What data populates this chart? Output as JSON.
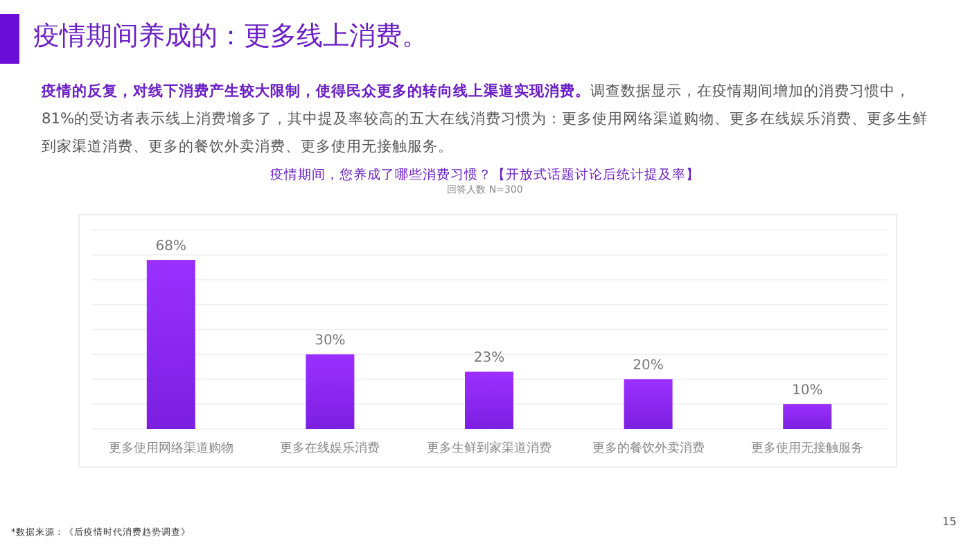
{
  "chart_data": {
    "type": "bar",
    "title": "疫情期间，您养成了哪些消费习惯？【开放式话题讨论后统计提及率】",
    "subtitle": "回答人数 N=300",
    "categories": [
      "更多使用网络渠道购物",
      "更多在线娱乐消费",
      "更多生鲜到家渠道消费",
      "更多的餐饮外卖消费",
      "更多使用无接触服务"
    ],
    "values": [
      68,
      30,
      23,
      20,
      10
    ],
    "value_labels": [
      "68%",
      "30%",
      "23%",
      "20%",
      "10%"
    ],
    "color": "#7b1fe0",
    "ylim": [
      0,
      80
    ],
    "yticks": [
      {
        "value": 0,
        "label": null
      },
      {
        "value": 10,
        "label": null
      },
      {
        "value": 20,
        "label": null
      },
      {
        "value": 30,
        "label": null
      },
      {
        "value": 40,
        "label": null
      },
      {
        "value": 50,
        "label": null
      },
      {
        "value": 60,
        "label": null
      },
      {
        "value": 70,
        "label": null
      },
      {
        "value": 80,
        "label": null
      }
    ],
    "tick_labels": "x",
    "grid": "y",
    "annotations": [
      "疫情期间养成的：更多线上消费。",
      "**疫情的反复，对线下消费产生较大限制，使得民众更多的转向线上渠道实现消费。**调查数据显示，在疫情期间增加的消费习惯中，81%的受访者表示线上消费增多了，其中提及率较高的五大在线消费习惯为：更多使用网络渠道购物、更多在线娱乐消费、更多生鲜到家渠道消费、更多的餐饮外卖消费、更多使用无接触服务。",
      "*数据来源：《后疫情时代消费趋势调查》",
      "15"
    ]
  }
}
